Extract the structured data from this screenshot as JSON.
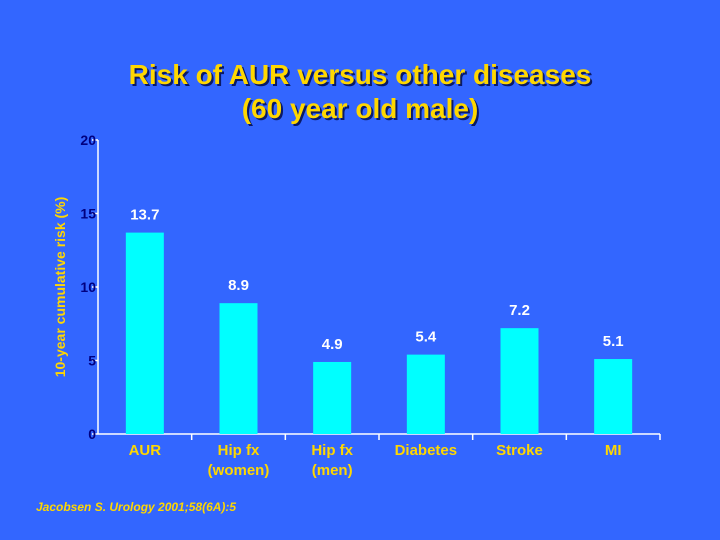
{
  "chart_data": {
    "type": "bar",
    "title": [
      "Risk of AUR versus other diseases",
      "(60 year old male)"
    ],
    "ylabel": "10-year cumulative risk (%)",
    "xlabel": "",
    "ylim": [
      0,
      20
    ],
    "yticks": [
      0,
      5,
      10,
      15,
      20
    ],
    "categories": [
      [
        "AUR"
      ],
      [
        "Hip fx",
        "(women)"
      ],
      [
        "Hip fx",
        "(men)"
      ],
      [
        "Diabetes"
      ],
      [
        "Stroke"
      ],
      [
        "MI"
      ]
    ],
    "values": [
      13.7,
      8.9,
      4.9,
      5.4,
      7.2,
      5.1
    ],
    "value_labels": [
      "13.7",
      "8.9",
      "4.9",
      "5.4",
      "7.2",
      "5.1"
    ],
    "grid": false,
    "colors": {
      "bar": "#00ffff",
      "background": "#3366ff",
      "title": "#ffd700",
      "axis": "#ffffff",
      "ytick": "#000080",
      "value_label": "#ffffff"
    }
  },
  "source": "Jacobsen S. Urology 2001;58(6A):5"
}
